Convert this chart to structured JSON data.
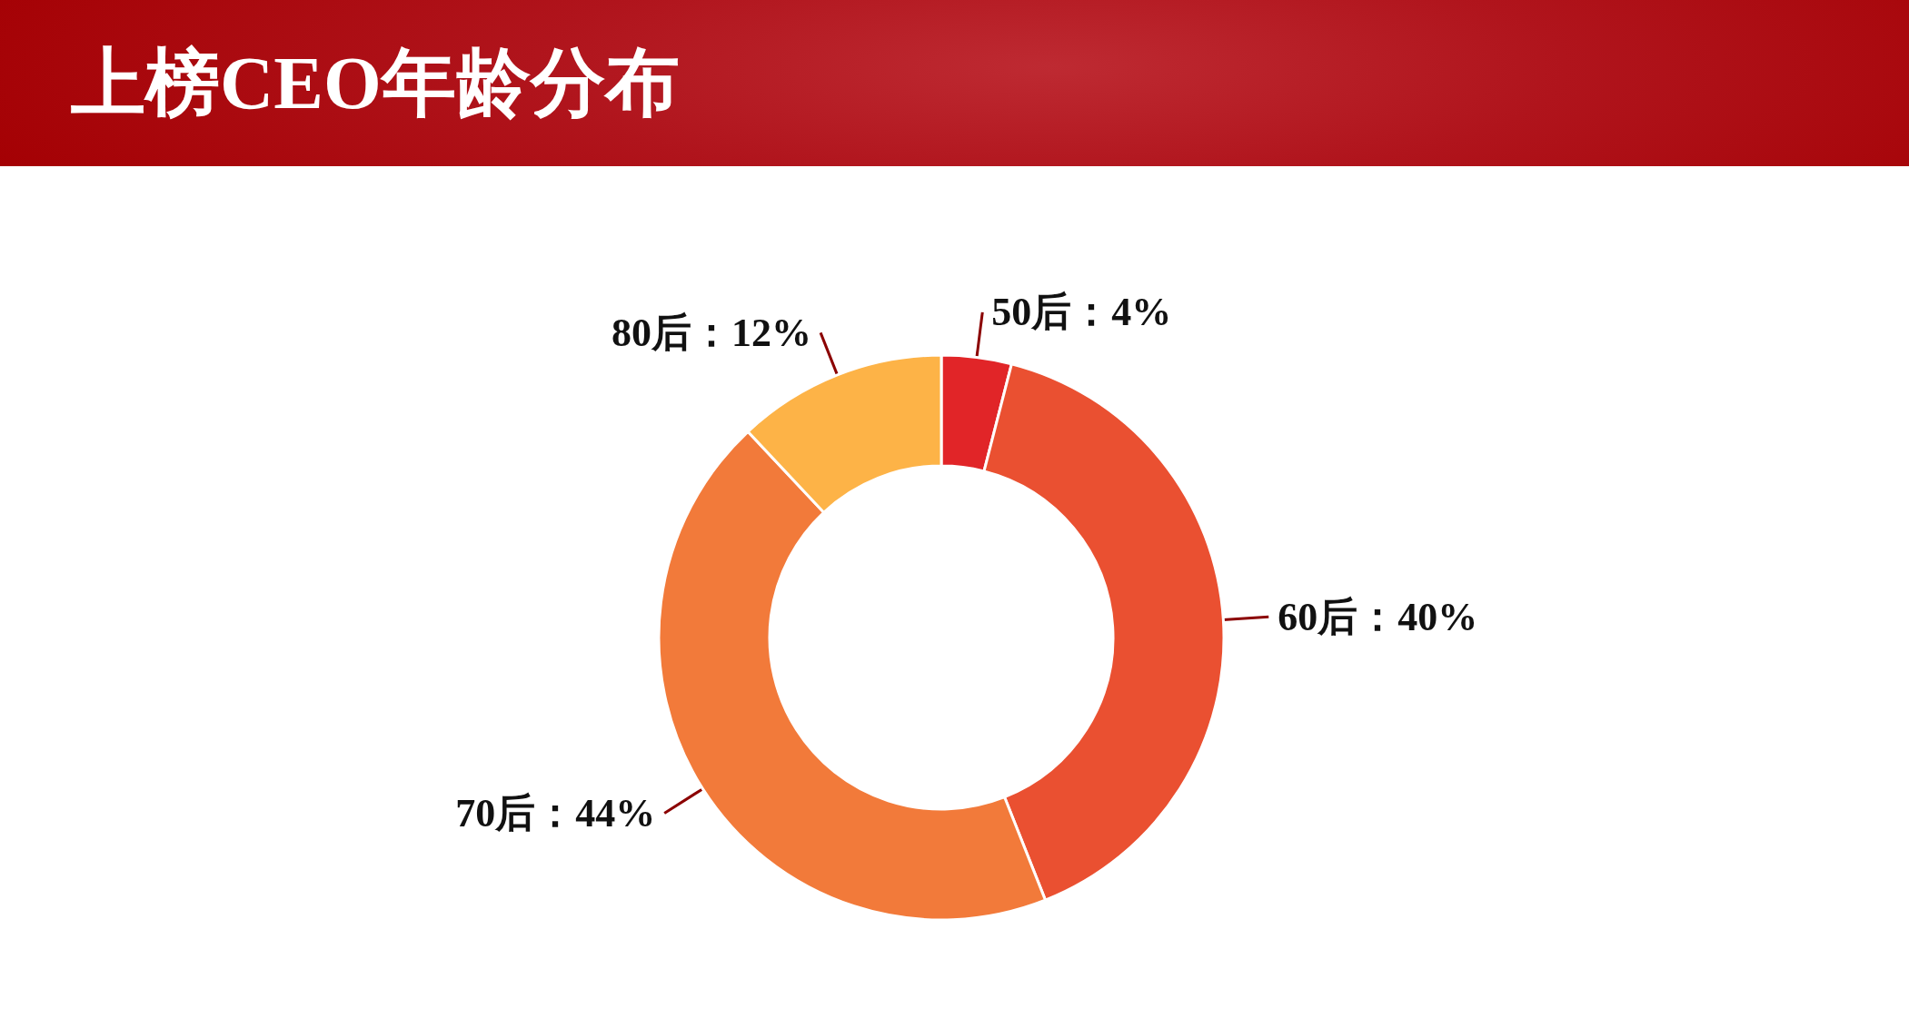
{
  "chart_data": {
    "type": "donut",
    "title": "上榜CEO年龄分布",
    "categories": [
      "50后",
      "60后",
      "70后",
      "80后"
    ],
    "values": [
      4,
      40,
      44,
      12
    ],
    "colors": [
      "#e12528",
      "#ea5031",
      "#f27a3a",
      "#fdb347"
    ],
    "value_labels": [
      "：4%",
      "：40%",
      "：44%",
      "：12%"
    ]
  }
}
